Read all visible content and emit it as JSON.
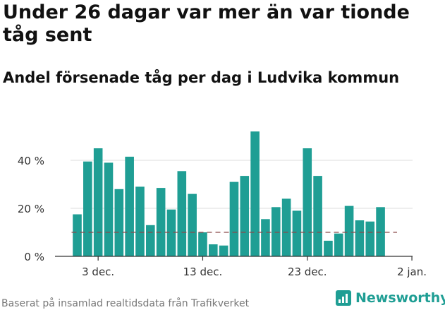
{
  "title": "Under 26 dagar var mer än var tionde tåg sent",
  "subtitle": "Andel försenade tåg per dag i Ludvika kommun",
  "footer": "Baserat på insamlad realtidsdata från Trafikverket",
  "brand": {
    "name": "Newsworthy",
    "icon": "newsworthy-logo-icon"
  },
  "colors": {
    "bar": "#1f9e94",
    "reference_line": "#8b4a4a",
    "grid": "#dddddd",
    "axis": "#333333"
  },
  "chart_data": {
    "type": "bar",
    "x_unit": "day",
    "x": [
      "2019-12-01",
      "2019-12-02",
      "2019-12-03",
      "2019-12-04",
      "2019-12-05",
      "2019-12-06",
      "2019-12-07",
      "2019-12-08",
      "2019-12-09",
      "2019-12-10",
      "2019-12-11",
      "2019-12-12",
      "2019-12-13",
      "2019-12-14",
      "2019-12-15",
      "2019-12-16",
      "2019-12-17",
      "2019-12-18",
      "2019-12-19",
      "2019-12-20",
      "2019-12-21",
      "2019-12-22",
      "2019-12-23",
      "2019-12-24",
      "2019-12-25",
      "2019-12-26",
      "2019-12-27",
      "2019-12-28",
      "2019-12-29",
      "2019-12-30",
      "2019-12-31"
    ],
    "values": [
      17.5,
      39.5,
      45,
      39,
      28,
      41.5,
      29,
      13,
      28.5,
      19.5,
      35.5,
      26,
      10,
      5,
      4.5,
      31,
      33.5,
      52,
      15.5,
      20.5,
      24,
      19,
      45,
      33.5,
      6.5,
      9.5,
      21,
      15,
      14.5,
      20.5,
      null
    ],
    "reference_line": 10,
    "ylim": [
      0,
      55
    ],
    "yticks": [
      0,
      20,
      40
    ],
    "ytick_labels": [
      "0 %",
      "20 %",
      "40 %"
    ],
    "xticks": [
      "2019-12-03",
      "2019-12-13",
      "2019-12-23",
      "2020-01-02"
    ],
    "xtick_labels": [
      "3 dec.",
      "13 dec.",
      "23 dec.",
      "2 jan."
    ],
    "grid": true,
    "legend": "none"
  }
}
